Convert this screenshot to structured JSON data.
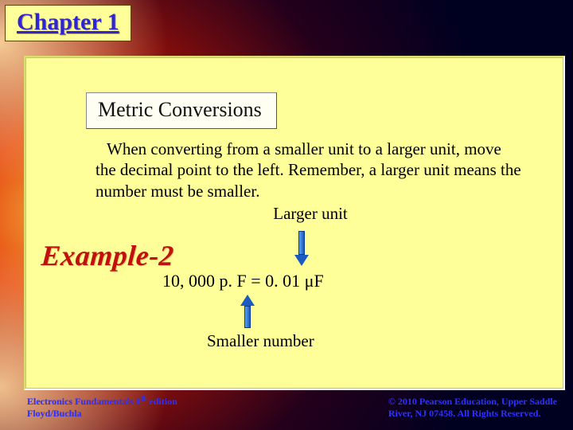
{
  "chapter": {
    "label": "Chapter 1"
  },
  "title": {
    "text": "Metric Conversions"
  },
  "body": {
    "line": "When converting from a smaller unit to a larger unit, move the decimal point to the left. Remember, a larger unit means the number must be smaller.",
    "larger_unit": "Larger unit"
  },
  "example": {
    "label": "Example-2"
  },
  "equation": {
    "text": "10, 000 p. F = 0. 01 μF"
  },
  "smaller": {
    "text": "Smaller number"
  },
  "footer": {
    "left_line1_a": "Electronics Fundamentals 8",
    "left_line1_sup": "th",
    "left_line1_b": " edition",
    "left_line2": "Floyd/Buchla",
    "right_line1": "© 2010 Pearson Education, Upper Saddle",
    "right_line2": "River, NJ 07458.  All Rights Reserved."
  },
  "colors": {
    "panel_bg": "#ffff99",
    "chapter_text": "#2e24d6",
    "example_text": "#c01010",
    "footer_text": "#3030ff",
    "arrow_fill": "#1a5bbf"
  }
}
